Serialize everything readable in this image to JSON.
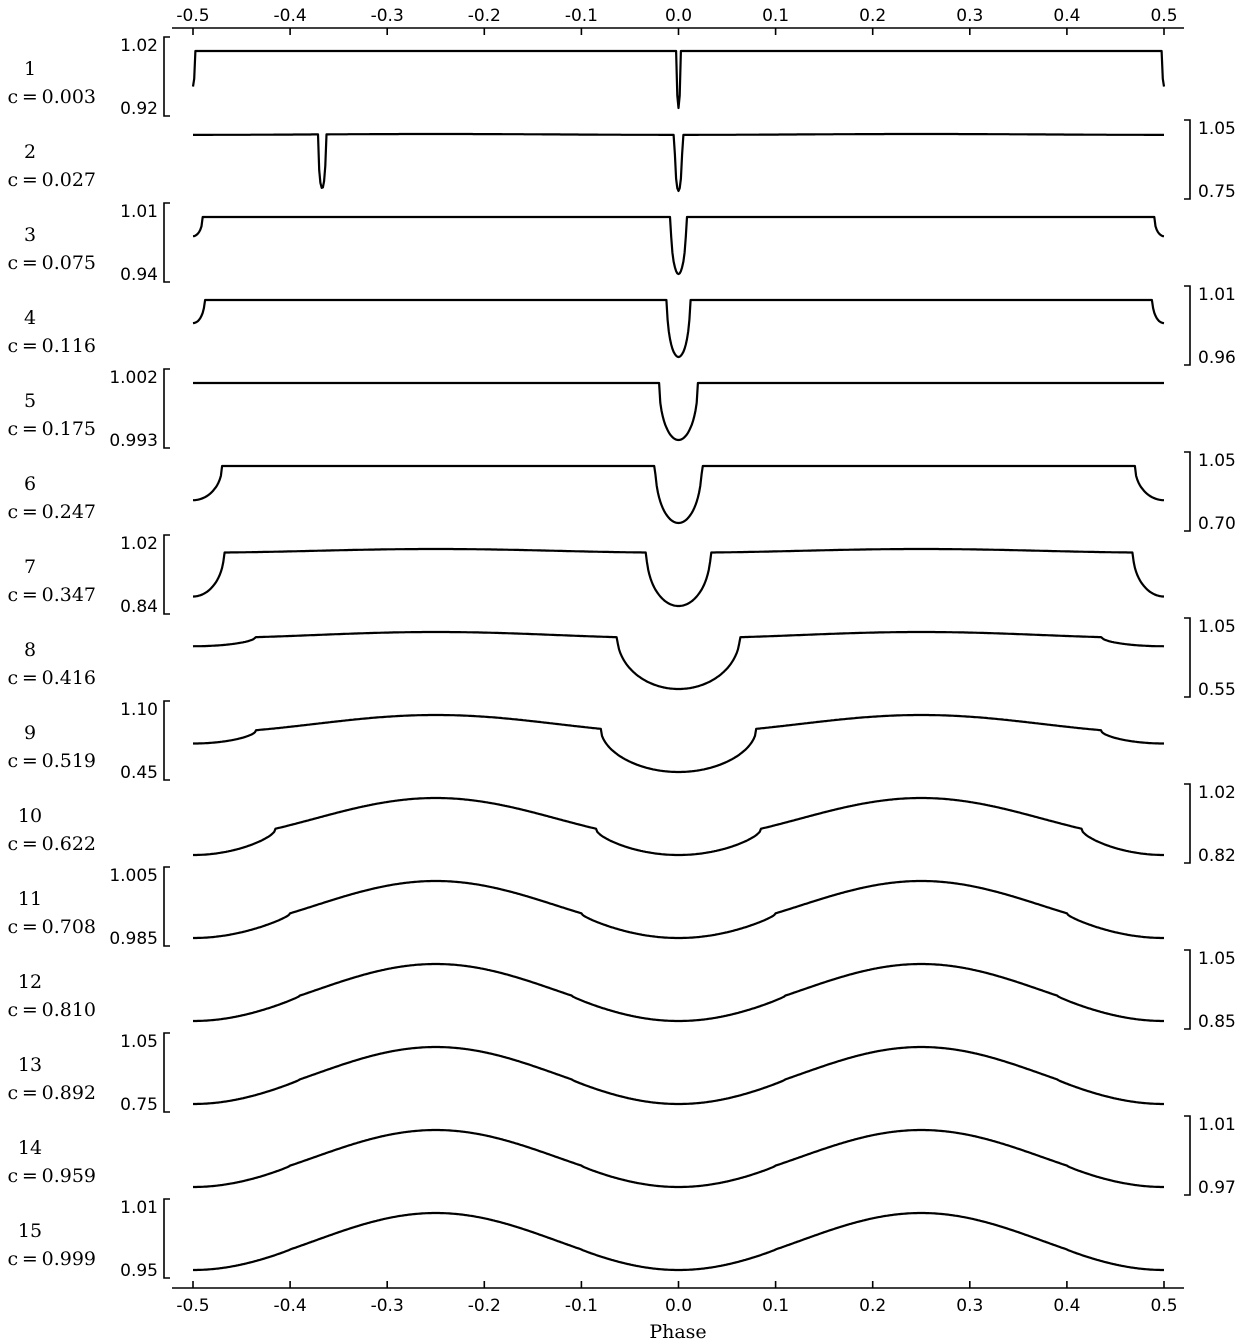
{
  "chart_data": {
    "type": "line",
    "xlabel": "Phase",
    "xlim": [
      -0.5,
      0.5
    ],
    "xticks": [
      -0.5,
      -0.4,
      -0.3,
      -0.2,
      -0.1,
      0.0,
      0.1,
      0.2,
      0.3,
      0.4,
      0.5
    ],
    "xtick_labels": [
      "-0.5",
      "-0.4",
      "-0.3",
      "-0.2",
      "-0.1",
      "0.0",
      "0.1",
      "0.2",
      "0.3",
      "0.4",
      "0.5"
    ],
    "grid": false,
    "panels": [
      {
        "id": "1",
        "c": "c = 0.003",
        "ylabels": [
          "1.02",
          "0.92"
        ],
        "label_side": "left",
        "ylim": [
          0.92,
          1.02
        ],
        "secondary": {
          "depth": 0.06,
          "half_width": 0.002,
          "center": 0.5
        },
        "primary": {
          "depth": 0.096,
          "half_width": 0.002
        },
        "reflection": 0.0
      },
      {
        "id": "2",
        "c": "c = 0.027",
        "ylabels": [
          "1.05",
          "0.75"
        ],
        "label_side": "right",
        "ylim": [
          0.75,
          1.05
        ],
        "secondary": {
          "depth": 0.25,
          "half_width": 0.004,
          "center": -0.367
        },
        "primary": {
          "depth": 0.26,
          "half_width": 0.004
        },
        "reflection": 0.004
      },
      {
        "id": "3",
        "c": "c = 0.075",
        "ylabels": [
          "1.01",
          "0.94"
        ],
        "label_side": "left",
        "ylim": [
          0.94,
          1.01
        ],
        "secondary": {
          "depth": 0.0145,
          "half_width": 0.01,
          "center": 0.5
        },
        "primary": {
          "depth": 0.043,
          "half_width": 0.008
        },
        "reflection": 0.0
      },
      {
        "id": "4",
        "c": "c = 0.116",
        "ylabels": [
          "1.01",
          "0.96"
        ],
        "label_side": "right",
        "ylim": [
          0.96,
          1.01
        ],
        "secondary": {
          "depth": 0.013,
          "half_width": 0.012,
          "center": 0.5
        },
        "primary": {
          "depth": 0.032,
          "half_width": 0.012
        },
        "reflection": 0.0
      },
      {
        "id": "5",
        "c": "c = 0.175",
        "ylabels": [
          "1.002",
          "0.993"
        ],
        "label_side": "left",
        "ylim": [
          0.993,
          1.002
        ],
        "secondary": {
          "depth": 0.0,
          "half_width": 0.02,
          "center": 0.5
        },
        "primary": {
          "depth": 0.0057,
          "half_width": 0.02
        },
        "reflection": 0.0
      },
      {
        "id": "6",
        "c": "c = 0.247",
        "ylabels": [
          "1.05",
          "0.70"
        ],
        "label_side": "right",
        "ylim": [
          0.7,
          1.05
        ],
        "secondary": {
          "depth": 0.15,
          "half_width": 0.03,
          "center": 0.5
        },
        "primary": {
          "depth": 0.25,
          "half_width": 0.024
        },
        "reflection": 0.0
      },
      {
        "id": "7",
        "c": "c = 0.347",
        "ylabels": [
          "1.02",
          "0.84"
        ],
        "label_side": "left",
        "ylim": [
          0.84,
          1.02
        ],
        "secondary": {
          "depth": 0.06,
          "half_width": 0.032,
          "center": 0.5
        },
        "primary": {
          "depth": 0.073,
          "half_width": 0.033
        },
        "reflection": 0.005
      },
      {
        "id": "8",
        "c": "c = 0.416",
        "ylabels": [
          "1.05",
          "0.55"
        ],
        "label_side": "right",
        "ylim": [
          0.55,
          1.05
        ],
        "secondary": {
          "depth": 0.04,
          "half_width": 0.064,
          "center": 0.5
        },
        "primary": {
          "depth": 0.25,
          "half_width": 0.063
        },
        "reflection": 0.03
      },
      {
        "id": "9",
        "c": "c = 0.519",
        "ylabels": [
          "1.10",
          "0.45"
        ],
        "label_side": "left",
        "ylim": [
          0.45,
          1.1
        ],
        "secondary": {
          "depth": 0.07,
          "half_width": 0.065,
          "center": 0.5
        },
        "primary": {
          "depth": 0.26,
          "half_width": 0.08
        },
        "reflection": 0.12
      },
      {
        "id": "10",
        "c": "c = 0.622",
        "ylabels": [
          "1.02",
          "0.82"
        ],
        "label_side": "right",
        "ylim": [
          0.82,
          1.02
        ],
        "secondary": {
          "depth": 0.036,
          "half_width": 0.085,
          "center": 0.5
        },
        "primary": {
          "depth": 0.036,
          "half_width": 0.085
        },
        "reflection": 0.096
      },
      {
        "id": "11",
        "c": "c = 0.708",
        "ylabels": [
          "1.005",
          "0.985"
        ],
        "label_side": "left",
        "ylim": [
          0.985,
          1.005
        ],
        "secondary": {
          "depth": 0.0012,
          "half_width": 0.1,
          "center": 0.5
        },
        "primary": {
          "depth": 0.0012,
          "half_width": 0.1
        },
        "reflection": 0.0078
      },
      {
        "id": "12",
        "c": "c = 0.810",
        "ylabels": [
          "1.05",
          "0.85"
        ],
        "label_side": "right",
        "ylim": [
          0.85,
          1.05
        ],
        "secondary": {
          "depth": 0.008,
          "half_width": 0.11,
          "center": 0.5
        },
        "primary": {
          "depth": 0.008,
          "half_width": 0.11
        },
        "reflection": 0.115
      },
      {
        "id": "13",
        "c": "c = 0.892",
        "ylabels": [
          "1.05",
          "0.75"
        ],
        "label_side": "left",
        "ylim": [
          0.75,
          1.05
        ],
        "secondary": {
          "depth": 0.008,
          "half_width": 0.11,
          "center": 0.5
        },
        "primary": {
          "depth": 0.008,
          "half_width": 0.11
        },
        "reflection": 0.18
      },
      {
        "id": "14",
        "c": "c = 0.959",
        "ylabels": [
          "1.01",
          "0.97"
        ],
        "label_side": "right",
        "ylim": [
          0.97,
          1.01
        ],
        "secondary": {
          "depth": 0.001,
          "half_width": 0.1,
          "center": 0.5
        },
        "primary": {
          "depth": 0.001,
          "half_width": 0.1
        },
        "reflection": 0.021
      },
      {
        "id": "15",
        "c": "c = 0.999",
        "ylabels": [
          "1.01",
          "0.95"
        ],
        "label_side": "left",
        "ylim": [
          0.95,
          1.01
        ],
        "secondary": {
          "depth": 0.001,
          "half_width": 0.1,
          "center": 0.5
        },
        "primary": {
          "depth": 0.001,
          "half_width": 0.1
        },
        "reflection": 0.043
      }
    ]
  }
}
